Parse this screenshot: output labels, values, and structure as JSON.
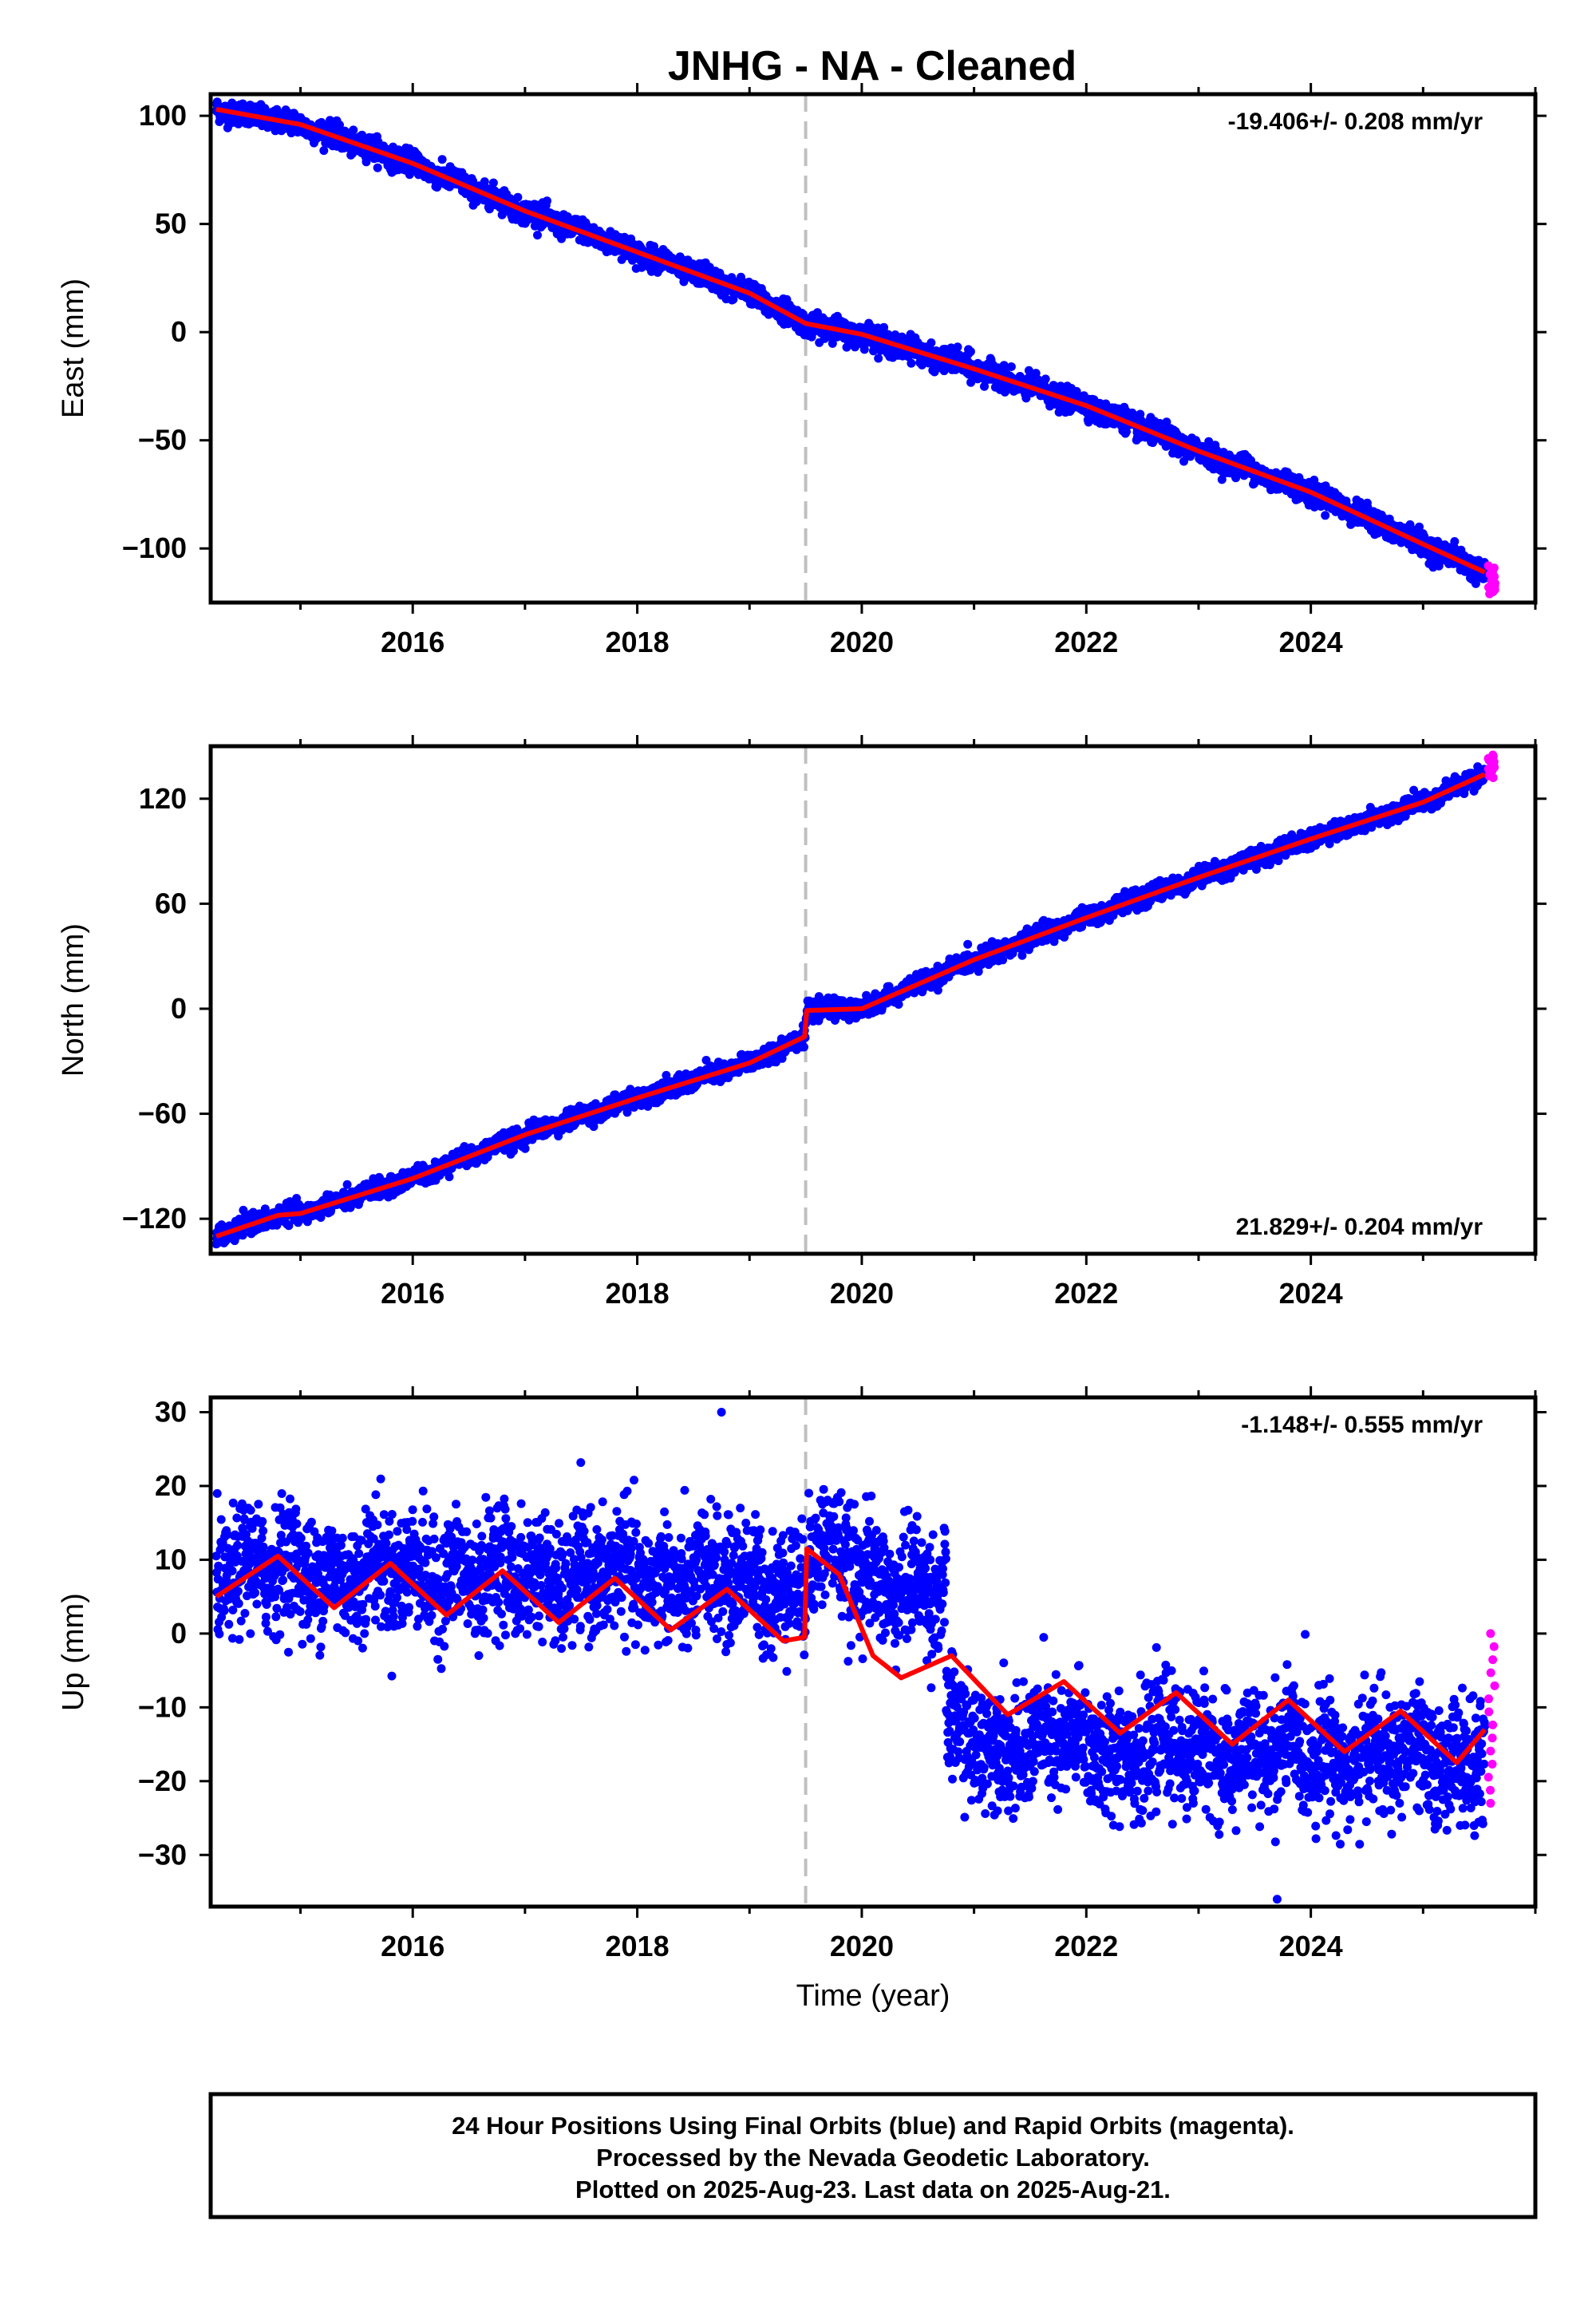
{
  "title": "JNHG  - NA - Cleaned",
  "colors": {
    "final_orbits": "#0000ff",
    "rapid_orbits": "#ff00ff",
    "model": "#ff0000",
    "event_line": "#c0c0c0"
  },
  "chart_data": [
    {
      "type": "scatter",
      "component": "east",
      "ylabel": "East (mm)",
      "xlim": [
        2014.2,
        2026.0
      ],
      "ylim": [
        -125,
        110
      ],
      "xticks": [
        2016,
        2018,
        2020,
        2022,
        2024
      ],
      "yticks": [
        -100,
        -50,
        0,
        50,
        100
      ],
      "rate_label": "-19.406+/- 0.208 mm/yr",
      "rate_label_position": "top-right",
      "event_line_x": 2019.5,
      "final_orbits": {
        "x_range": [
          2014.25,
          2025.55
        ],
        "model_knots": [
          [
            2014.25,
            103
          ],
          [
            2015.0,
            96
          ],
          [
            2016.0,
            78
          ],
          [
            2017.0,
            56
          ],
          [
            2018.0,
            37
          ],
          [
            2019.0,
            18
          ],
          [
            2019.5,
            4
          ],
          [
            2020.0,
            -1
          ],
          [
            2021.0,
            -17
          ],
          [
            2022.0,
            -34
          ],
          [
            2023.0,
            -55
          ],
          [
            2024.0,
            -74
          ],
          [
            2025.0,
            -98
          ],
          [
            2025.55,
            -111
          ]
        ],
        "seasonal_amplitude": 3,
        "scatter_sd": 2.5
      },
      "rapid_orbits": {
        "x_range": [
          2025.58,
          2025.64
        ],
        "y_range": [
          -121,
          -108
        ]
      },
      "outliers": [
        [
          2020.95,
          -8
        ],
        [
          2020.97,
          -9
        ]
      ]
    },
    {
      "type": "scatter",
      "component": "north",
      "ylabel": "North (mm)",
      "xlim": [
        2014.2,
        2026.0
      ],
      "ylim": [
        -140,
        150
      ],
      "xticks": [
        2016,
        2018,
        2020,
        2022,
        2024
      ],
      "yticks": [
        -120,
        -60,
        0,
        60,
        120
      ],
      "rate_label": "21.829+/- 0.204 mm/yr",
      "rate_label_position": "bottom-right",
      "event_line_x": 2019.5,
      "final_orbits": {
        "x_range": [
          2014.25,
          2025.55
        ],
        "model_knots": [
          [
            2014.25,
            -130
          ],
          [
            2014.8,
            -118
          ],
          [
            2015.0,
            -117
          ],
          [
            2016.0,
            -97
          ],
          [
            2017.0,
            -72
          ],
          [
            2018.0,
            -51
          ],
          [
            2019.0,
            -31
          ],
          [
            2019.49,
            -16
          ],
          [
            2019.51,
            -1
          ],
          [
            2020.0,
            0
          ],
          [
            2021.0,
            28
          ],
          [
            2022.0,
            52
          ],
          [
            2023.0,
            75
          ],
          [
            2024.0,
            97
          ],
          [
            2025.0,
            118
          ],
          [
            2025.55,
            134
          ]
        ],
        "seasonal_amplitude": 3,
        "scatter_sd": 2.5
      },
      "rapid_orbits": {
        "x_range": [
          2025.58,
          2025.64
        ],
        "y_range": [
          132,
          145
        ]
      },
      "outliers": []
    },
    {
      "type": "scatter",
      "component": "up",
      "ylabel": "Up (mm)",
      "xlabel": "Time (year)",
      "xlim": [
        2014.2,
        2026.0
      ],
      "ylim": [
        -37,
        32
      ],
      "xticks": [
        2016,
        2018,
        2020,
        2022,
        2024
      ],
      "yticks": [
        -30,
        -20,
        -10,
        0,
        10,
        20,
        30
      ],
      "rate_label": "-1.148+/- 0.555 mm/yr",
      "rate_label_position": "top-right",
      "event_line_x": 2019.5,
      "final_orbits": {
        "x_range": [
          2014.25,
          2025.55
        ],
        "model_knots": [
          [
            2014.25,
            5
          ],
          [
            2014.8,
            10.5
          ],
          [
            2015.3,
            3.5
          ],
          [
            2015.8,
            9.5
          ],
          [
            2016.3,
            2.5
          ],
          [
            2016.8,
            8.5
          ],
          [
            2017.3,
            1.5
          ],
          [
            2017.8,
            7.5
          ],
          [
            2018.3,
            0.5
          ],
          [
            2018.8,
            6
          ],
          [
            2019.3,
            -1
          ],
          [
            2019.49,
            -0.5
          ],
          [
            2019.51,
            11.5
          ],
          [
            2019.8,
            8
          ],
          [
            2020.1,
            -3
          ],
          [
            2020.35,
            -6
          ],
          [
            2020.8,
            -3
          ],
          [
            2021.3,
            -11
          ],
          [
            2021.8,
            -6.5
          ],
          [
            2022.3,
            -13.5
          ],
          [
            2022.8,
            -8
          ],
          [
            2023.3,
            -15
          ],
          [
            2023.8,
            -9
          ],
          [
            2024.3,
            -16
          ],
          [
            2024.8,
            -10.5
          ],
          [
            2025.3,
            -17.5
          ],
          [
            2025.55,
            -13
          ]
        ],
        "observed_offsets": [
          [
            2014.25,
            2019.5,
            6
          ],
          [
            2019.5,
            2020.75,
            8
          ],
          [
            2020.75,
            2025.55,
            -12
          ]
        ],
        "seasonal_amplitude": 4.5,
        "scatter_sd": 4
      },
      "rapid_orbits": {
        "x_range": [
          2025.58,
          2025.64
        ],
        "y_range": [
          -23,
          0
        ]
      },
      "outliers": [
        [
          2018.75,
          30
        ],
        [
          2023.7,
          -36
        ]
      ]
    }
  ],
  "footnote": {
    "lines": [
      "24 Hour Positions Using Final Orbits (blue) and Rapid Orbits (magenta).",
      "Processed by the Nevada Geodetic Laboratory.",
      "Plotted on 2025-Aug-23. Last data on 2025-Aug-21."
    ]
  }
}
